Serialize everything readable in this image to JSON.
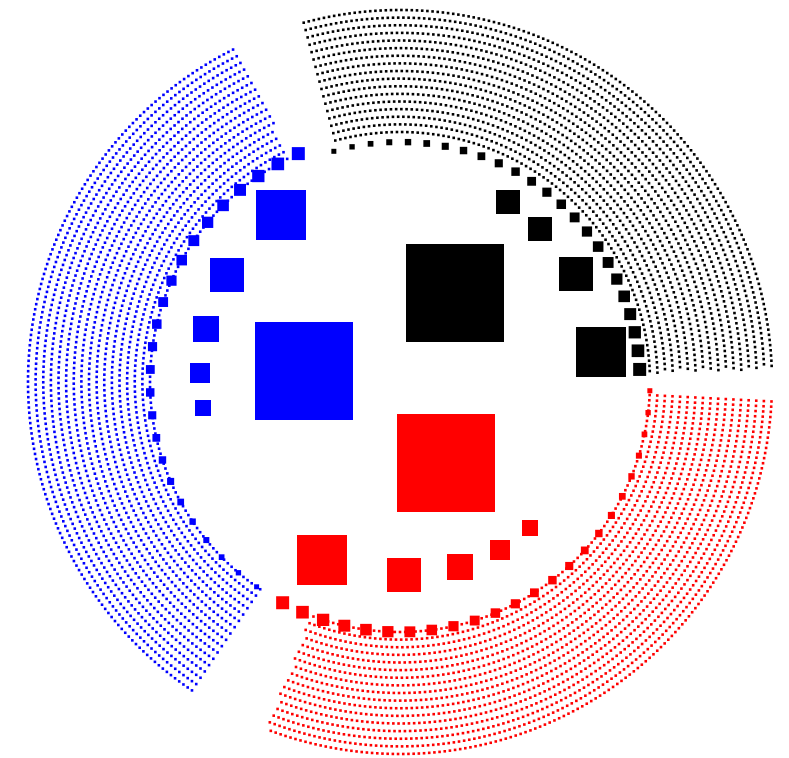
{
  "colors": {
    "background": "#ffffff",
    "group_a": "#000000",
    "group_b": "#ff0000",
    "group_c": "#0000ff"
  },
  "groups": [
    {
      "id": "group-a",
      "color": "#000000",
      "outer_rows": 17,
      "squares": 11,
      "center_square": true
    },
    {
      "id": "group-b",
      "color": "#ff0000",
      "outer_rows": 17,
      "squares": 14,
      "center_square": true
    },
    {
      "id": "group-c",
      "color": "#0000ff",
      "outer_rows": 17,
      "squares": 16,
      "center_square": true
    }
  ]
}
